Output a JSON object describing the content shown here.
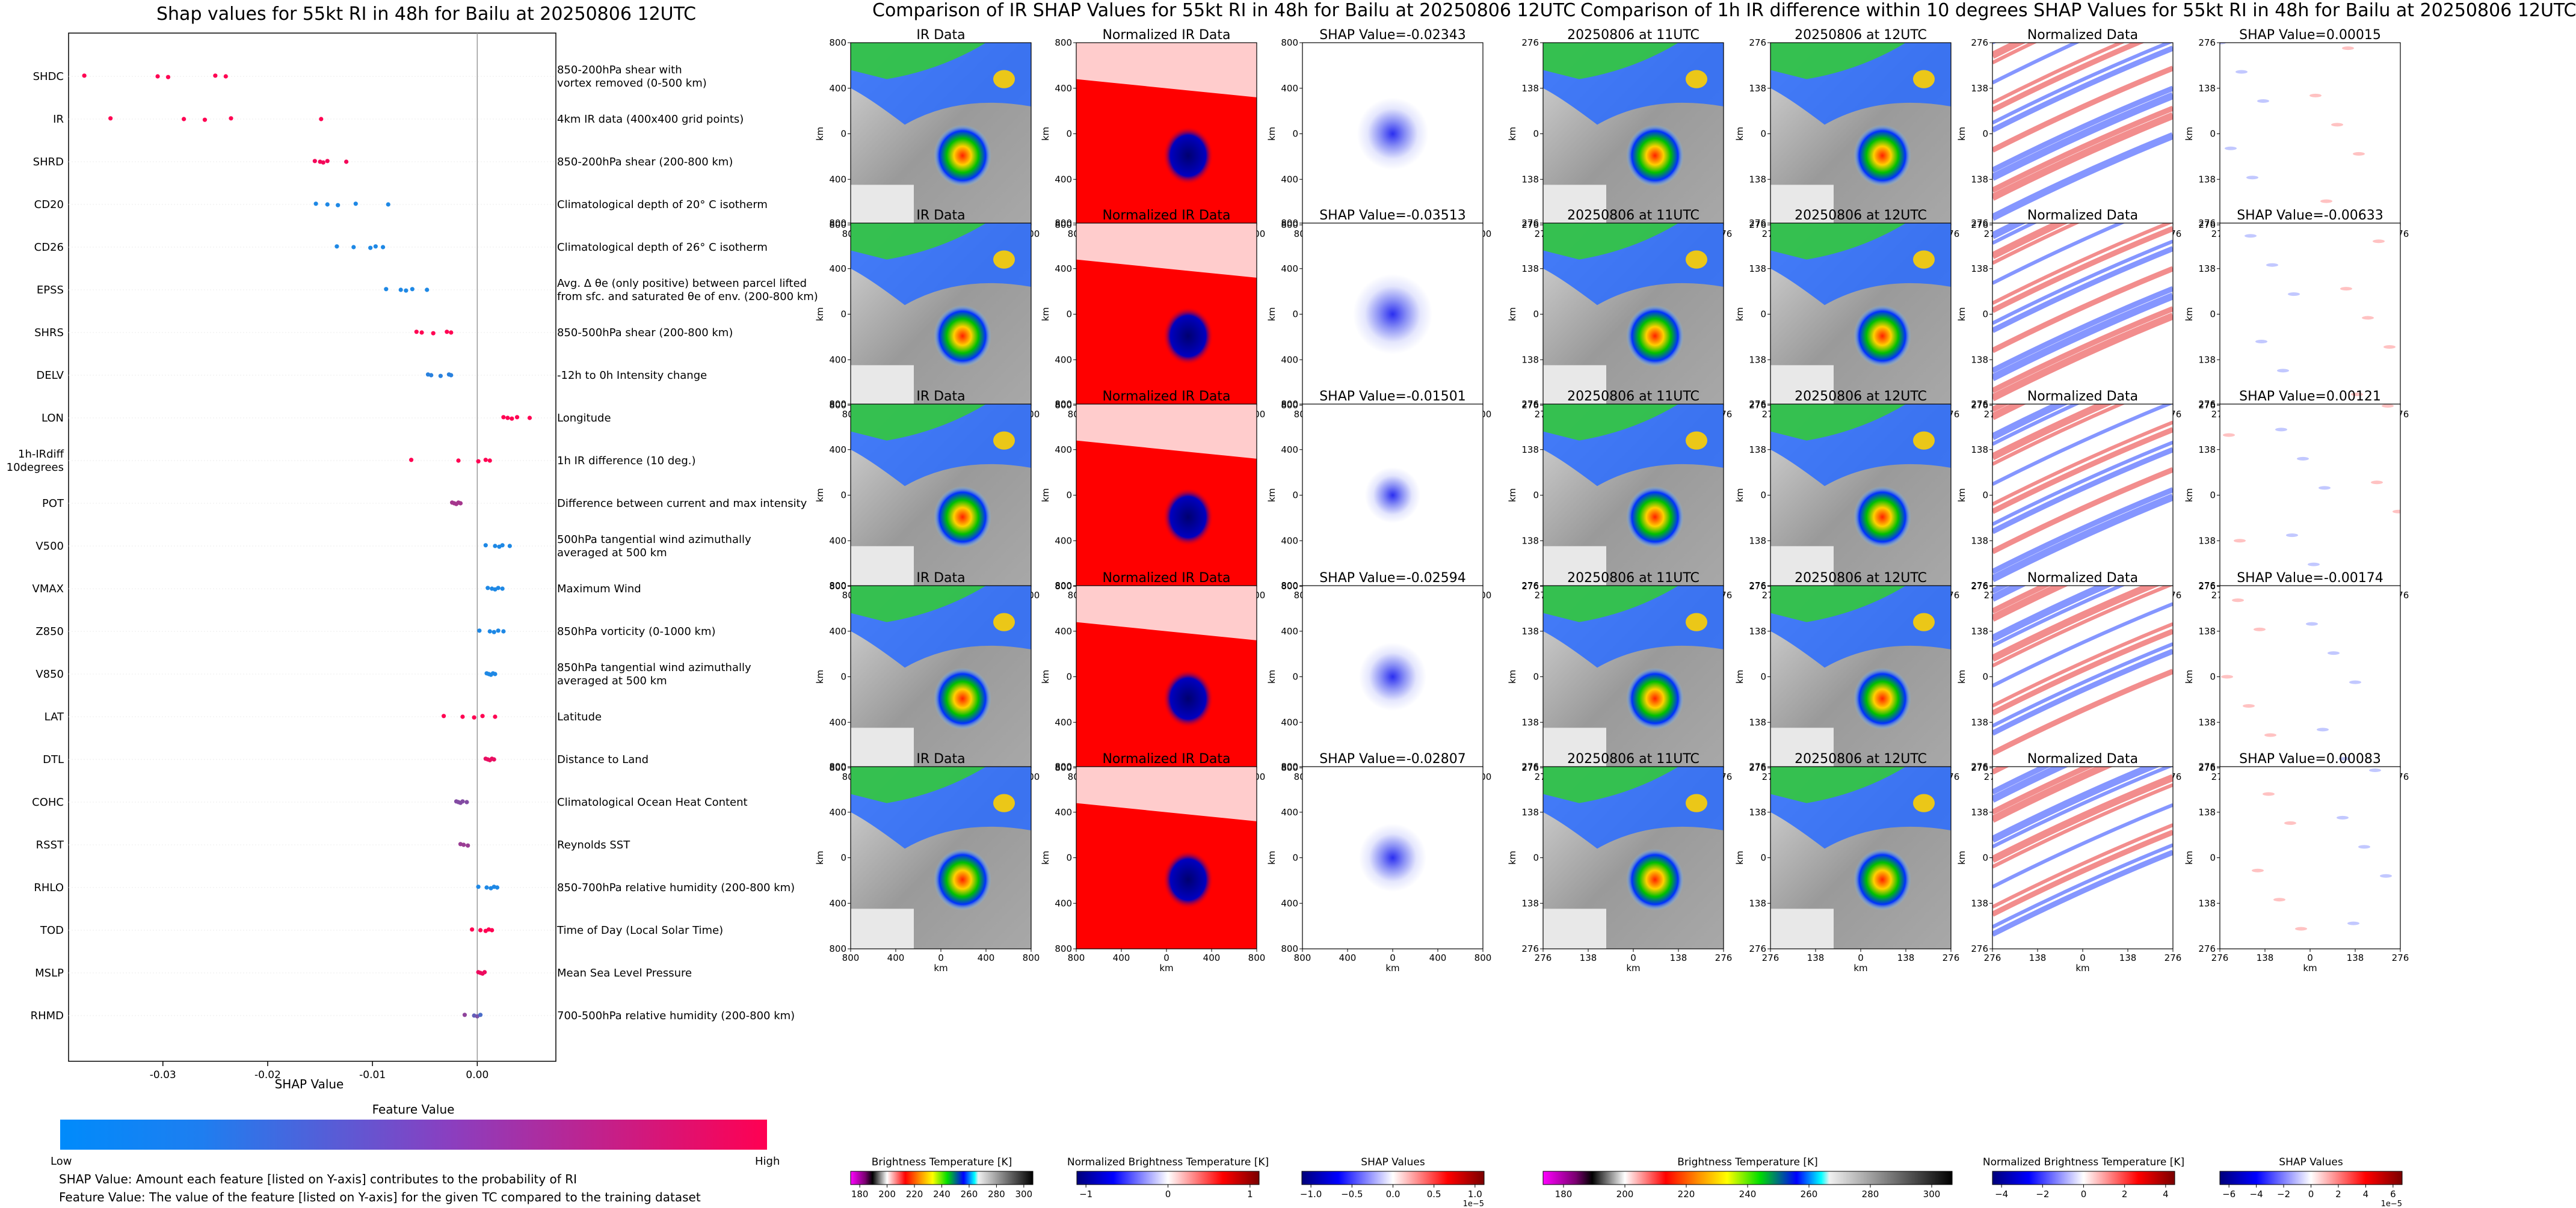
{
  "summary": {
    "title": "Shap values for 55kt RI in 48h for Bailu at 20250806 12UTC",
    "xlabel": "SHAP Value",
    "colorbar_label": "Feature Value",
    "colorbar_low": "Low",
    "colorbar_high": "High",
    "note1": "SHAP Value: Amount each feature [listed on Y-axis] contributes to the probability of RI",
    "note2": "Feature Value: The value of the feature [listed on Y-axis] for the given TC compared to the training dataset",
    "colors": {
      "low": "#1e88e5",
      "high": "#ff0052"
    }
  },
  "chart_data": {
    "type": "scatter",
    "xlim": [
      -0.039,
      0.0075
    ],
    "xticks": [
      "-0.03",
      "-0.02",
      "-0.01",
      "0.00"
    ],
    "xtick_values": [
      -0.03,
      -0.02,
      -0.01,
      0.0
    ],
    "features": [
      {
        "name": "SHDC",
        "desc": "850-200hPa shear with\nvortex removed (0-500 km)",
        "points": [
          [
            -0.0375,
            1
          ],
          [
            -0.0305,
            1
          ],
          [
            -0.0295,
            1
          ],
          [
            -0.025,
            1
          ],
          [
            -0.024,
            1
          ]
        ]
      },
      {
        "name": "IR",
        "desc": "4km IR data (400x400 grid points)",
        "points": [
          [
            -0.035,
            1
          ],
          [
            -0.028,
            1
          ],
          [
            -0.026,
            1
          ],
          [
            -0.0235,
            1
          ],
          [
            -0.0149,
            1
          ]
        ]
      },
      {
        "name": "SHRD",
        "desc": "850-200hPa shear (200-800 km)",
        "points": [
          [
            -0.0155,
            0.95
          ],
          [
            -0.015,
            0.95
          ],
          [
            -0.0147,
            0.95
          ],
          [
            -0.0143,
            0.95
          ],
          [
            -0.0125,
            0.95
          ]
        ]
      },
      {
        "name": "CD20",
        "desc": "Climatological depth of 20° C isotherm",
        "points": [
          [
            -0.0154,
            0
          ],
          [
            -0.0143,
            0
          ],
          [
            -0.0133,
            0
          ],
          [
            -0.0116,
            0
          ],
          [
            -0.0085,
            0
          ]
        ]
      },
      {
        "name": "CD26",
        "desc": "Climatological depth of 26° C isotherm",
        "points": [
          [
            -0.0134,
            0
          ],
          [
            -0.0118,
            0
          ],
          [
            -0.0102,
            0
          ],
          [
            -0.0097,
            0
          ],
          [
            -0.009,
            0
          ]
        ]
      },
      {
        "name": "EPSS",
        "desc": "Avg. Δ θe (only positive) between parcel lifted\nfrom sfc. and saturated θe of env. (200-800 km)",
        "points": [
          [
            -0.0087,
            0
          ],
          [
            -0.0073,
            0
          ],
          [
            -0.0068,
            0
          ],
          [
            -0.0062,
            0
          ],
          [
            -0.0048,
            0
          ]
        ]
      },
      {
        "name": "SHRS",
        "desc": "850-500hPa shear (200-800 km)",
        "points": [
          [
            -0.0058,
            1
          ],
          [
            -0.0053,
            1
          ],
          [
            -0.0042,
            1
          ],
          [
            -0.0029,
            1
          ],
          [
            -0.0025,
            1
          ]
        ]
      },
      {
        "name": "DELV",
        "desc": "-12h to 0h Intensity change",
        "points": [
          [
            -0.0047,
            0.05
          ],
          [
            -0.0044,
            0.05
          ],
          [
            -0.0035,
            0.05
          ],
          [
            -0.0027,
            0.05
          ],
          [
            -0.0025,
            0.05
          ]
        ]
      },
      {
        "name": "LON",
        "desc": "Longitude",
        "points": [
          [
            0.0025,
            1
          ],
          [
            0.0029,
            1
          ],
          [
            0.0033,
            1
          ],
          [
            0.0038,
            1
          ],
          [
            0.005,
            1
          ]
        ]
      },
      {
        "name": "1h-IRdiff\n10degrees",
        "desc": "1h IR difference (10 deg.)",
        "points": [
          [
            -0.0063,
            1
          ],
          [
            -0.0018,
            1
          ],
          [
            0.0001,
            1
          ],
          [
            0.0008,
            1
          ],
          [
            0.0012,
            1
          ]
        ]
      },
      {
        "name": "POT",
        "desc": "Difference between current and max intensity",
        "points": [
          [
            -0.0024,
            0.6
          ],
          [
            -0.0022,
            0.6
          ],
          [
            -0.002,
            0.6
          ],
          [
            -0.0018,
            0.6
          ],
          [
            -0.0016,
            0.6
          ]
        ]
      },
      {
        "name": "V500",
        "desc": "500hPa tangential wind azimuthally\naveraged at 500 km",
        "points": [
          [
            0.0008,
            0
          ],
          [
            0.0017,
            0
          ],
          [
            0.0021,
            0
          ],
          [
            0.0024,
            0
          ],
          [
            0.0031,
            0
          ]
        ]
      },
      {
        "name": "VMAX",
        "desc": "Maximum Wind",
        "points": [
          [
            0.001,
            0
          ],
          [
            0.0014,
            0
          ],
          [
            0.0017,
            0
          ],
          [
            0.002,
            0
          ],
          [
            0.0024,
            0
          ]
        ]
      },
      {
        "name": "Z850",
        "desc": "850hPa vorticity (0-1000 km)",
        "points": [
          [
            0.0002,
            0
          ],
          [
            0.0012,
            0
          ],
          [
            0.0016,
            0
          ],
          [
            0.002,
            0
          ],
          [
            0.0025,
            0
          ]
        ]
      },
      {
        "name": "V850",
        "desc": "850hPa tangential wind azimuthally\naveraged at 500 km",
        "points": [
          [
            0.0009,
            0
          ],
          [
            0.0011,
            0
          ],
          [
            0.0013,
            0
          ],
          [
            0.0015,
            0
          ],
          [
            0.0017,
            0
          ]
        ]
      },
      {
        "name": "LAT",
        "desc": "Latitude",
        "points": [
          [
            -0.0032,
            1
          ],
          [
            -0.0014,
            1
          ],
          [
            -0.0003,
            1
          ],
          [
            0.0005,
            1
          ],
          [
            0.0017,
            1
          ]
        ]
      },
      {
        "name": "DTL",
        "desc": "Distance to Land",
        "points": [
          [
            0.0008,
            0.9
          ],
          [
            0.001,
            0.9
          ],
          [
            0.0012,
            0.9
          ],
          [
            0.0014,
            0.9
          ],
          [
            0.0016,
            0.9
          ]
        ]
      },
      {
        "name": "COHC",
        "desc": "Climatological Ocean Heat Content",
        "points": [
          [
            -0.002,
            0.45
          ],
          [
            -0.0018,
            0.45
          ],
          [
            -0.0016,
            0.45
          ],
          [
            -0.0014,
            0.45
          ],
          [
            -0.001,
            0.45
          ]
        ]
      },
      {
        "name": "RSST",
        "desc": "Reynolds SST",
        "points": [
          [
            -0.0016,
            0.55
          ],
          [
            -0.0013,
            0.55
          ],
          [
            -0.0009,
            0.55
          ]
        ]
      },
      {
        "name": "RHLO",
        "desc": "850-700hPa relative humidity (200-800 km)",
        "points": [
          [
            0.0001,
            0
          ],
          [
            0.0009,
            0
          ],
          [
            0.0013,
            0
          ],
          [
            0.0016,
            0
          ],
          [
            0.0019,
            0
          ]
        ]
      },
      {
        "name": "TOD",
        "desc": "Time of Day (Local Solar Time)",
        "points": [
          [
            -0.0005,
            1
          ],
          [
            0.0003,
            1
          ],
          [
            0.0008,
            1
          ],
          [
            0.0011,
            1
          ],
          [
            0.0014,
            1
          ]
        ]
      },
      {
        "name": "MSLP",
        "desc": "Mean Sea Level Pressure",
        "points": [
          [
            0.0001,
            0.92
          ],
          [
            0.0003,
            0.92
          ],
          [
            0.0005,
            0.92
          ],
          [
            0.0007,
            0.92
          ]
        ]
      },
      {
        "name": "RHMD",
        "desc": "700-500hPa relative humidity (200-800 km)",
        "points": [
          [
            -0.0012,
            0.5
          ],
          [
            -0.0003,
            0.3
          ],
          [
            0.0,
            0.4
          ],
          [
            0.0003,
            0.2
          ]
        ]
      }
    ]
  },
  "group1": {
    "title": "Comparison of IR SHAP Values for 55kt RI in 48h for Bailu at 20250806 12UTC",
    "col_titles": [
      "IR Data",
      "Normalized IR Data"
    ],
    "shap_titles": [
      "SHAP Value=-0.02343",
      "SHAP Value=-0.03513",
      "SHAP Value=-0.01501",
      "SHAP Value=-0.02594",
      "SHAP Value=-0.02807"
    ],
    "x_ticks": [
      "800",
      "400",
      "0",
      "400",
      "800"
    ],
    "y_ticks": [
      "800",
      "400",
      "0",
      "400",
      "800"
    ],
    "axis_label": "km",
    "cbar1": {
      "label": "Brightness Temperature [K]",
      "ticks": [
        "180",
        "200",
        "220",
        "240",
        "260",
        "280",
        "300"
      ]
    },
    "cbar2": {
      "label": "Normalized Brightness Temperature [K]",
      "ticks": [
        "−1",
        "0",
        "1"
      ]
    },
    "cbar3": {
      "label": "SHAP Values",
      "ticks": [
        "−1.0",
        "−0.5",
        "0.0",
        "0.5",
        "1.0"
      ],
      "scale": "1e−5"
    }
  },
  "group2": {
    "title": "Comparison of 1h IR difference within 10 degrees SHAP Values for 55kt RI in 48h for Bailu at 20250806 12UTC",
    "col_titles": [
      "20250806 at 11UTC",
      "20250806 at 12UTC",
      "Normalized Data"
    ],
    "shap_titles": [
      "SHAP Value=0.00015",
      "SHAP Value=-0.00633",
      "SHAP Value=0.00121",
      "SHAP Value=-0.00174",
      "SHAP Value=0.00083"
    ],
    "x_ticks": [
      "276",
      "138",
      "0",
      "138",
      "276"
    ],
    "y_ticks": [
      "276",
      "138",
      "0",
      "138",
      "276"
    ],
    "axis_label": "km",
    "cbar1": {
      "label": "Brightness Temperature [K]",
      "ticks": [
        "180",
        "200",
        "220",
        "240",
        "260",
        "280",
        "300"
      ]
    },
    "cbar2": {
      "label": "Normalized Brightness Temperature [K]",
      "ticks": [
        "−4",
        "−2",
        "0",
        "2",
        "4"
      ]
    },
    "cbar3": {
      "label": "SHAP Values",
      "ticks": [
        "−6",
        "−4",
        "−2",
        "0",
        "2",
        "4",
        "6"
      ],
      "scale": "1e−5"
    }
  }
}
